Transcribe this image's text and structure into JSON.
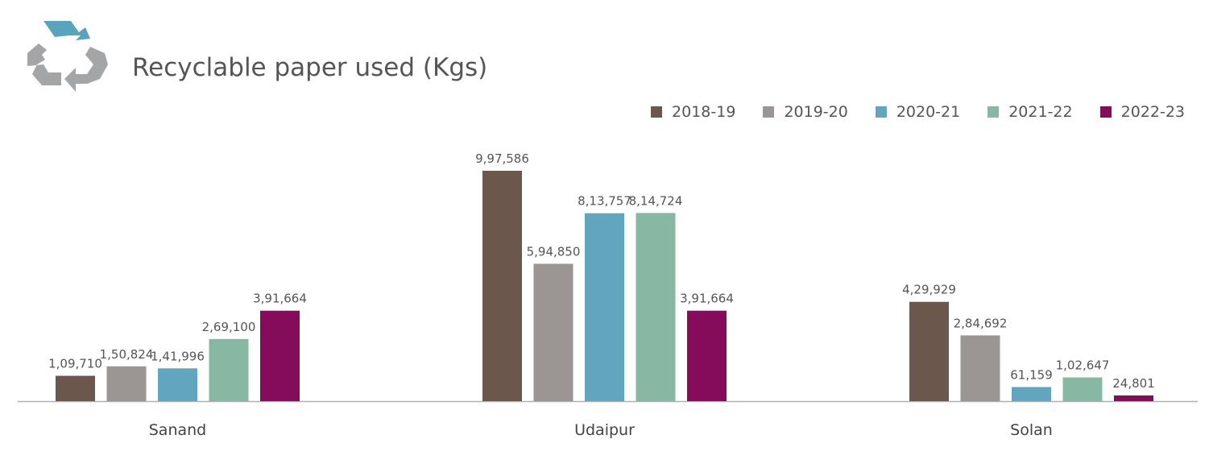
{
  "header": {
    "title": "Recyclable paper used (Kgs)",
    "icon": "recycle-icon"
  },
  "colors": {
    "2018-19": "#6b574b",
    "2019-20": "#9b9594",
    "2020-21": "#62a5bf",
    "2021-22": "#87b8a3",
    "2022-23": "#850c5a",
    "icon_grey": "#a4a5a7",
    "icon_blue": "#5aa3bd"
  },
  "chart_data": {
    "type": "bar",
    "title": "Recyclable paper used (Kgs)",
    "xlabel": "",
    "ylabel": "",
    "ylim": [
      0,
      1050000
    ],
    "grid": false,
    "legend_position": "top-right",
    "categories": [
      "Sanand",
      "Udaipur",
      "Solan"
    ],
    "series": [
      {
        "name": "2018-19",
        "values": [
          109710,
          997586,
          429929
        ],
        "labels": [
          "1,09,710",
          "9,97,586",
          "4,29,929"
        ]
      },
      {
        "name": "2019-20",
        "values": [
          150824,
          594850,
          284692
        ],
        "labels": [
          "1,50,824",
          "5,94,850",
          "2,84,692"
        ]
      },
      {
        "name": "2020-21",
        "values": [
          141996,
          813757,
          61159
        ],
        "labels": [
          "1,41,996",
          "8,13,757",
          "61,159"
        ]
      },
      {
        "name": "2021-22",
        "values": [
          269100,
          814724,
          102647
        ],
        "labels": [
          "2,69,100",
          "8,14,724",
          "1,02,647"
        ]
      },
      {
        "name": "2022-23",
        "values": [
          391664,
          391664,
          24801
        ],
        "labels": [
          "3,91,664",
          "3,91,664",
          "24,801"
        ]
      }
    ]
  }
}
